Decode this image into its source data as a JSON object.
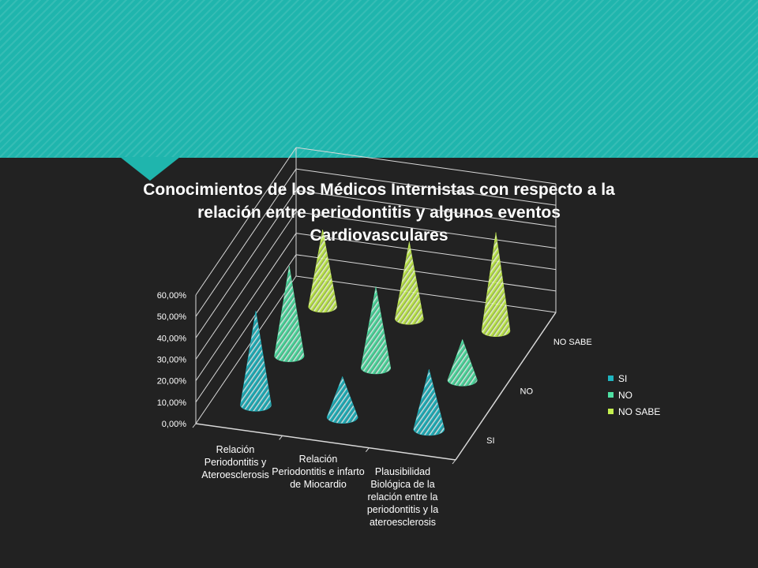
{
  "title": "Conocimientos de los Médicos Internistas con respecto a la relación entre periodontitis y algunos eventos Cardiovasculares",
  "colors": {
    "SI": "#1fb5c0",
    "NO": "#4fe0a3",
    "NO SABE": "#c4ef4f"
  },
  "chart_data": {
    "type": "bar",
    "style": "3d-cone",
    "title": "Conocimientos de los Médicos Internistas con respecto a la relación entre periodontitis y algunos eventos Cardiovasculares",
    "categories": [
      "Relación Periodontitis y Ateroesclerosis",
      "Relación Periodontitis e infarto de Miocardio",
      "Plausibilidad Biológica de la relación entre la periodontitis y la ateroesclerosis"
    ],
    "series": [
      {
        "name": "SI",
        "values": [
          44,
          19,
          28
        ]
      },
      {
        "name": "NO",
        "values": [
          42,
          38,
          19
        ]
      },
      {
        "name": "NO SABE",
        "values": [
          36,
          36,
          46
        ]
      }
    ],
    "y_ticks": [
      "0,00%",
      "10,00%",
      "20,00%",
      "30,00%",
      "40,00%",
      "50,00%",
      "60,00%"
    ],
    "ylim": [
      0,
      60
    ],
    "grid": true,
    "legend": "right"
  }
}
